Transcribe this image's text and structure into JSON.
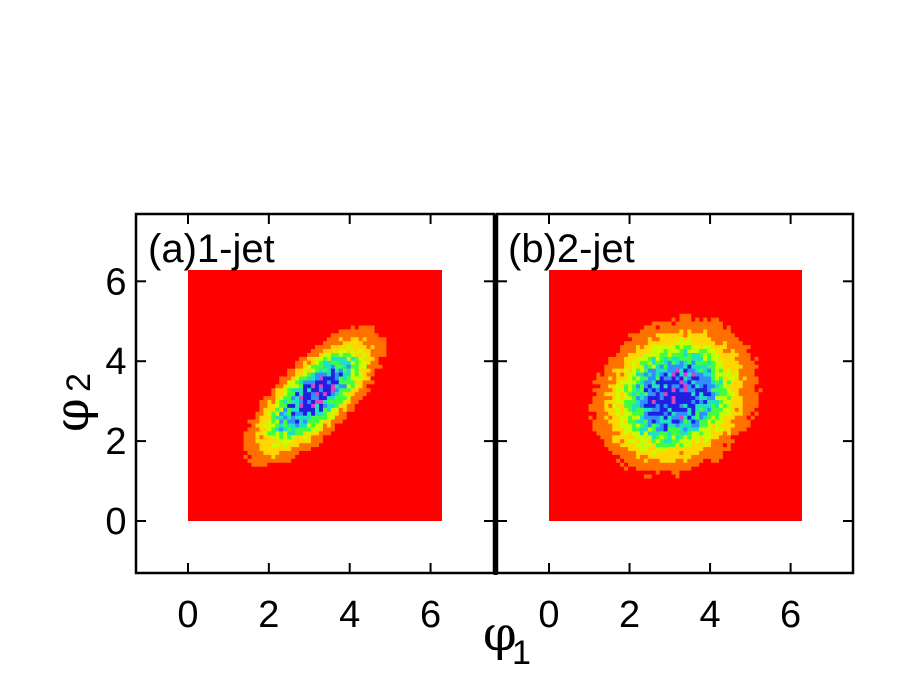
{
  "chart_data": [
    {
      "type": "heatmap",
      "panel_label": "(a)1-jet",
      "xlim": [
        -1.3,
        7.6
      ],
      "ylim": [
        -1.3,
        7.5
      ],
      "data_extent": [
        0,
        6.283,
        0,
        6.283
      ],
      "xticks": [
        "0",
        "2",
        "4",
        "6"
      ],
      "yticks": [
        "0",
        "2",
        "4",
        "6"
      ],
      "peak": [
        3.14,
        3.14
      ],
      "correlation": 0.72,
      "spread": [
        0.85,
        0.85
      ],
      "grid": false
    },
    {
      "type": "heatmap",
      "panel_label": "(b)2-jet",
      "xlim": [
        -1.3,
        7.6
      ],
      "ylim": [
        -1.3,
        7.5
      ],
      "data_extent": [
        0,
        6.283,
        0,
        6.283
      ],
      "xticks": [
        "0",
        "2",
        "4",
        "6"
      ],
      "yticks": [],
      "peak": [
        3.14,
        3.14
      ],
      "correlation": 0.15,
      "spread": [
        1.0,
        0.95
      ],
      "grid": false
    }
  ],
  "axes": {
    "ylabel": "φ",
    "ylabel_sub": "2",
    "xlabel": "φ",
    "xlabel_sub": "1"
  },
  "colors": {
    "scale": [
      "#ff0000",
      "#ff7000",
      "#ffd700",
      "#c8ff00",
      "#40ff40",
      "#20e0c0",
      "#3090ff",
      "#2020e0"
    ],
    "center": "#e040c0"
  }
}
